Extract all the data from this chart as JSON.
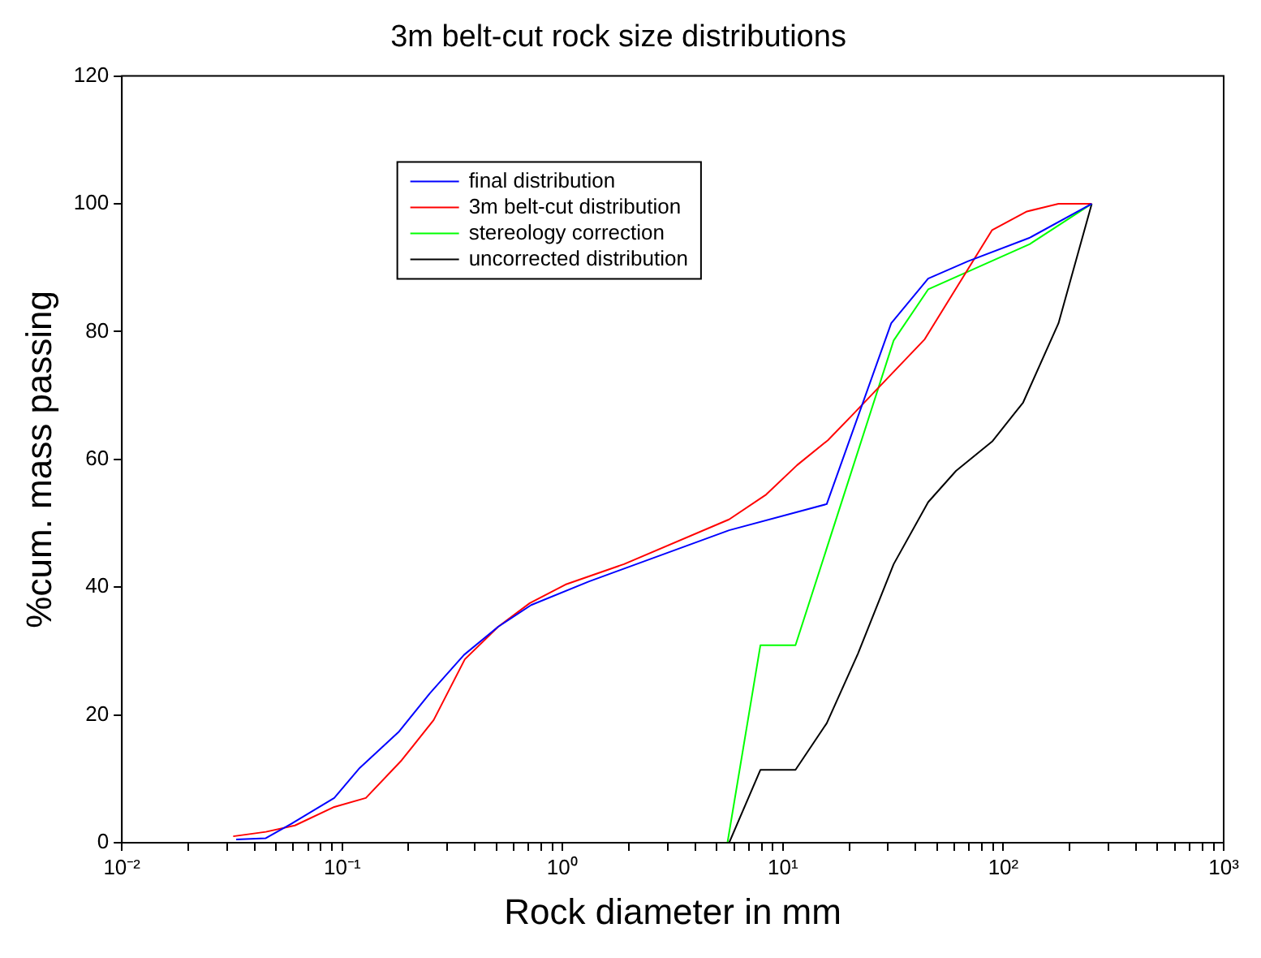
{
  "chart_data": {
    "type": "line",
    "title": "3m belt-cut rock size distributions",
    "xlabel": "Rock diameter in mm",
    "ylabel": "%cum. mass passing",
    "log": "x",
    "xlim": [
      0.01,
      1000
    ],
    "ylim": [
      0,
      120
    ],
    "xticks": [
      {
        "value": 0.01,
        "label": "10⁻²"
      },
      {
        "value": 0.02,
        "label": null
      },
      {
        "value": 0.03,
        "label": null
      },
      {
        "value": 0.04,
        "label": null
      },
      {
        "value": 0.05,
        "label": null
      },
      {
        "value": 0.06,
        "label": null
      },
      {
        "value": 0.07,
        "label": null
      },
      {
        "value": 0.08,
        "label": null
      },
      {
        "value": 0.09,
        "label": null
      },
      {
        "value": 0.1,
        "label": "10⁻¹"
      },
      {
        "value": 0.2,
        "label": null
      },
      {
        "value": 0.3,
        "label": null
      },
      {
        "value": 0.4,
        "label": null
      },
      {
        "value": 0.5,
        "label": null
      },
      {
        "value": 0.6,
        "label": null
      },
      {
        "value": 0.7,
        "label": null
      },
      {
        "value": 0.8,
        "label": null
      },
      {
        "value": 0.9,
        "label": null
      },
      {
        "value": 1,
        "label": "10⁰"
      },
      {
        "value": 2,
        "label": null
      },
      {
        "value": 3,
        "label": null
      },
      {
        "value": 4,
        "label": null
      },
      {
        "value": 5,
        "label": null
      },
      {
        "value": 6,
        "label": null
      },
      {
        "value": 7,
        "label": null
      },
      {
        "value": 8,
        "label": null
      },
      {
        "value": 9,
        "label": null
      },
      {
        "value": 10,
        "label": "10¹"
      },
      {
        "value": 20,
        "label": null
      },
      {
        "value": 30,
        "label": null
      },
      {
        "value": 40,
        "label": null
      },
      {
        "value": 50,
        "label": null
      },
      {
        "value": 60,
        "label": null
      },
      {
        "value": 70,
        "label": null
      },
      {
        "value": 80,
        "label": null
      },
      {
        "value": 90,
        "label": null
      },
      {
        "value": 100,
        "label": "10²"
      },
      {
        "value": 200,
        "label": null
      },
      {
        "value": 300,
        "label": null
      },
      {
        "value": 400,
        "label": null
      },
      {
        "value": 500,
        "label": null
      },
      {
        "value": 600,
        "label": null
      },
      {
        "value": 700,
        "label": null
      },
      {
        "value": 800,
        "label": null
      },
      {
        "value": 900,
        "label": null
      },
      {
        "value": 1000,
        "label": "10³"
      }
    ],
    "yticks": [
      0,
      20,
      40,
      60,
      80,
      100,
      120
    ],
    "grid": false,
    "legend": "top left",
    "line_style": "solid",
    "marker": "none",
    "series": [
      {
        "name": "final distribution",
        "color": "#0000ff",
        "x": [
          0.033,
          0.045,
          0.059,
          0.092,
          0.12,
          0.18,
          0.25,
          0.357,
          0.51,
          0.72,
          1.32,
          5.7,
          15.8,
          31,
          45.6,
          69,
          132,
          252
        ],
        "values": [
          0.5,
          0.7,
          3,
          7,
          11.7,
          17.3,
          23.4,
          29.4,
          33.8,
          37.2,
          40.9,
          48.9,
          53,
          81.3,
          88.3,
          91,
          94.7,
          100
        ]
      },
      {
        "name": "3m belt-cut distribution",
        "color": "#ff0000",
        "x": [
          0.032,
          0.045,
          0.061,
          0.092,
          0.128,
          0.186,
          0.26,
          0.36,
          0.51,
          0.71,
          1.03,
          1.9,
          5.7,
          8.4,
          11.6,
          16,
          21,
          44,
          89,
          128,
          178,
          252
        ],
        "values": [
          1,
          1.7,
          2.7,
          5.6,
          7,
          12.9,
          19.2,
          28.7,
          33.8,
          37.5,
          40.4,
          43.6,
          50.6,
          54.5,
          59.1,
          63,
          67.2,
          78.8,
          95.9,
          98.8,
          100,
          100
        ]
      },
      {
        "name": "stereology correction",
        "color": "#00ff00",
        "x": [
          5.6,
          7.9,
          11.4,
          31.8,
          45.6,
          132,
          252
        ],
        "values": [
          0,
          30.9,
          30.9,
          78.6,
          86.6,
          93.7,
          100
        ]
      },
      {
        "name": "uncorrected distribution",
        "color": "#000000",
        "x": [
          5.7,
          7.9,
          11.4,
          15.8,
          21.9,
          31.8,
          45.6,
          61,
          89,
          123,
          178,
          252
        ],
        "values": [
          0,
          11.4,
          11.4,
          18.7,
          29.6,
          43.6,
          53.3,
          58.2,
          62.8,
          68.9,
          81.3,
          100
        ]
      }
    ]
  }
}
